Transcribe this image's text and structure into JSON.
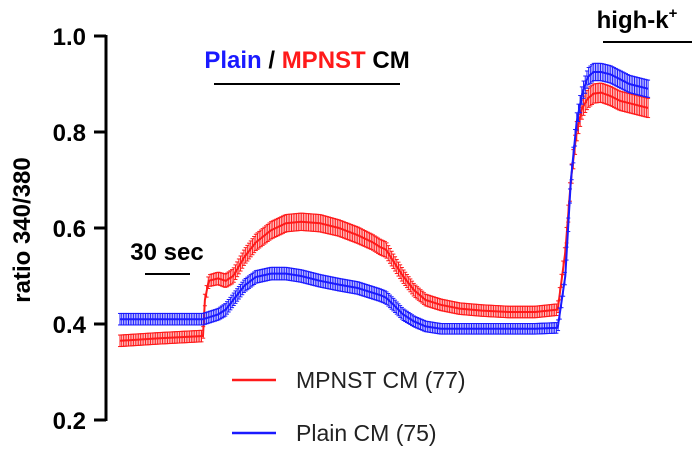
{
  "chart_data": {
    "type": "line",
    "ylabel": "ratio 340/380",
    "ylim": [
      0.2,
      1.0
    ],
    "yticks": [
      0.2,
      0.4,
      0.6,
      0.8,
      1.0
    ],
    "ytick_labels": [
      "0.2",
      "0.4",
      "0.6",
      "0.8",
      "1.0"
    ],
    "xlim": [
      0,
      300
    ],
    "grid": false,
    "legend_position": "bottom-center",
    "annotations": {
      "scale_bar": {
        "label": "30 sec",
        "x_start": 10,
        "x_end": 40,
        "y": 0.5
      },
      "treatment_bar": {
        "label_parts": [
          {
            "text": "Plain",
            "color": "#1a1aff"
          },
          {
            "text": " / ",
            "color": "#000000"
          },
          {
            "text": "MPNST",
            "color": "#ff1a1a"
          },
          {
            "text": " CM",
            "color": "#000000"
          }
        ],
        "x_start": 52,
        "x_end": 140,
        "y": 0.95
      },
      "highk_bar": {
        "label": "high-k",
        "superscript": "+",
        "x_start": 240,
        "x_end": 300,
        "y": 1.0
      }
    },
    "series": [
      {
        "name": "MPNST CM (77)",
        "color": "#ff1a1a",
        "legend_label": "MPNST CM (77)",
        "x": [
          0,
          20,
          44,
          45,
          47,
          52,
          56,
          60,
          66,
          72,
          80,
          88,
          96,
          106,
          116,
          126,
          134,
          138,
          141,
          145,
          150,
          156,
          162,
          170,
          180,
          192,
          206,
          220,
          232,
          236,
          239,
          242,
          245,
          248,
          251,
          255,
          260,
          265,
          270,
          275,
          280
        ],
        "y": [
          0.365,
          0.37,
          0.375,
          0.45,
          0.49,
          0.495,
          0.49,
          0.5,
          0.54,
          0.57,
          0.595,
          0.61,
          0.613,
          0.61,
          0.6,
          0.585,
          0.57,
          0.56,
          0.555,
          0.53,
          0.5,
          0.47,
          0.45,
          0.44,
          0.432,
          0.428,
          0.425,
          0.425,
          0.43,
          0.55,
          0.7,
          0.8,
          0.85,
          0.87,
          0.88,
          0.882,
          0.875,
          0.865,
          0.86,
          0.855,
          0.85
        ],
        "err": [
          0.012,
          0.012,
          0.012,
          0.012,
          0.012,
          0.013,
          0.014,
          0.015,
          0.016,
          0.017,
          0.018,
          0.018,
          0.018,
          0.018,
          0.017,
          0.017,
          0.016,
          0.016,
          0.016,
          0.015,
          0.014,
          0.013,
          0.012,
          0.012,
          0.012,
          0.012,
          0.012,
          0.012,
          0.012,
          0.015,
          0.02,
          0.02,
          0.02,
          0.02,
          0.02,
          0.02,
          0.02,
          0.02,
          0.02,
          0.02,
          0.02
        ]
      },
      {
        "name": "Plain CM (75)",
        "color": "#1a1aff",
        "legend_label": "Plain CM (75)",
        "x": [
          0,
          20,
          44,
          48,
          52,
          56,
          60,
          66,
          72,
          80,
          88,
          96,
          106,
          116,
          126,
          134,
          138,
          141,
          145,
          150,
          156,
          162,
          170,
          180,
          192,
          206,
          220,
          232,
          236,
          239,
          242,
          245,
          248,
          251,
          255,
          260,
          265,
          270,
          275,
          280
        ],
        "y": [
          0.41,
          0.41,
          0.41,
          0.415,
          0.42,
          0.43,
          0.45,
          0.48,
          0.498,
          0.505,
          0.505,
          0.5,
          0.49,
          0.482,
          0.475,
          0.465,
          0.46,
          0.455,
          0.44,
          0.42,
          0.405,
          0.395,
          0.39,
          0.39,
          0.39,
          0.39,
          0.39,
          0.392,
          0.5,
          0.7,
          0.82,
          0.88,
          0.915,
          0.925,
          0.925,
          0.92,
          0.91,
          0.9,
          0.895,
          0.89
        ],
        "err": [
          0.012,
          0.012,
          0.012,
          0.012,
          0.012,
          0.013,
          0.013,
          0.013,
          0.013,
          0.013,
          0.013,
          0.013,
          0.013,
          0.013,
          0.013,
          0.013,
          0.013,
          0.013,
          0.013,
          0.012,
          0.011,
          0.011,
          0.011,
          0.011,
          0.011,
          0.011,
          0.011,
          0.011,
          0.013,
          0.015,
          0.018,
          0.018,
          0.018,
          0.018,
          0.018,
          0.018,
          0.018,
          0.018,
          0.018,
          0.018
        ]
      }
    ]
  }
}
